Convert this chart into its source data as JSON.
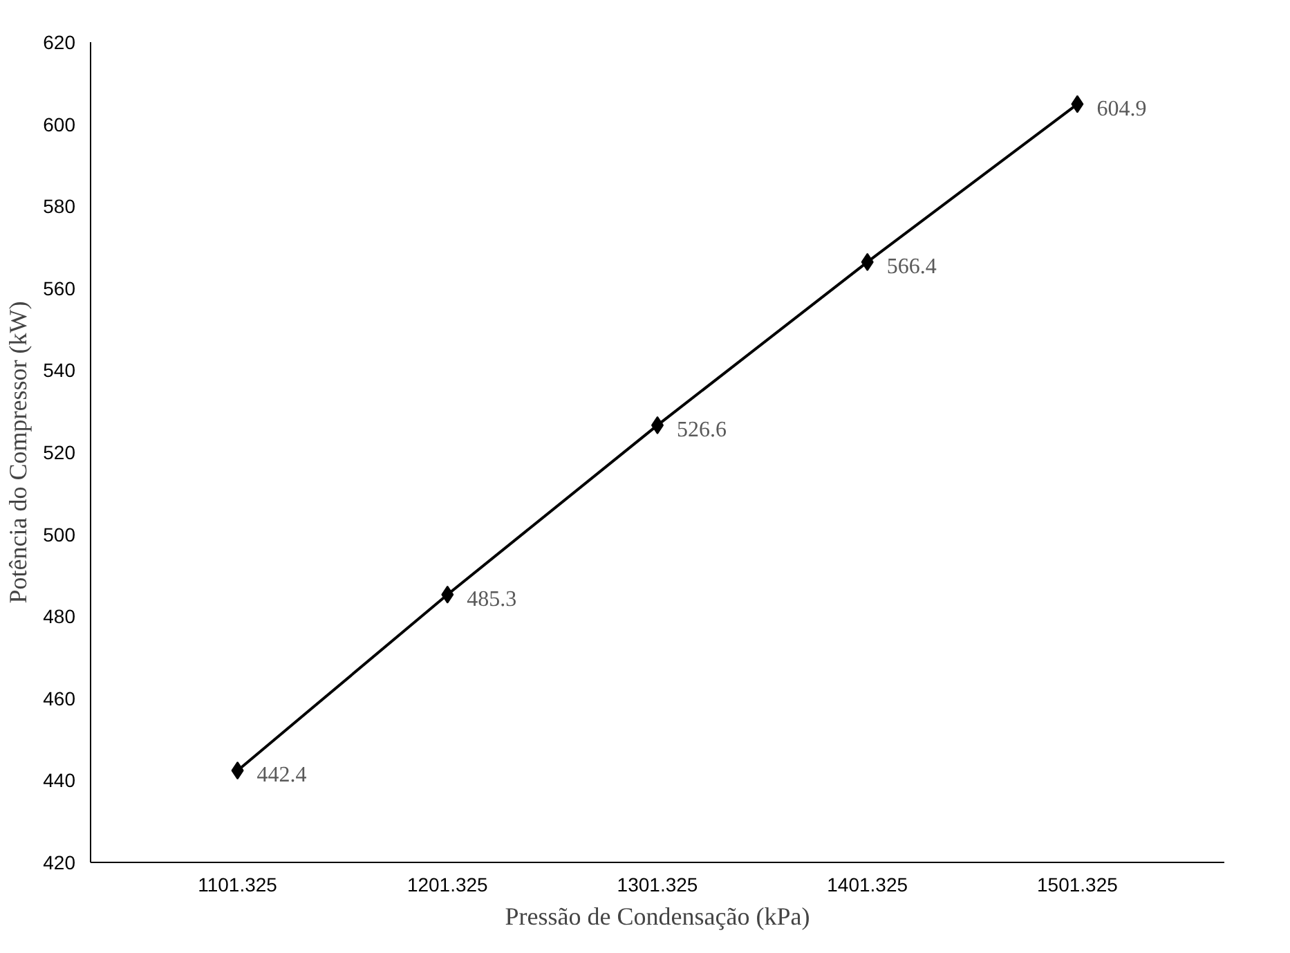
{
  "chart_data": {
    "type": "line",
    "xlabel": "Pressão de Condensação (kPa)",
    "ylabel": "Potência do Compressor (kW)",
    "categories": [
      "1101.325",
      "1201.325",
      "1301.325",
      "1401.325",
      "1501.325"
    ],
    "values": [
      442.4,
      485.3,
      526.6,
      566.4,
      604.9
    ],
    "color": "#000000",
    "marker": "diamond",
    "data_labels": true,
    "ylim": [
      420,
      620
    ],
    "yticks": [
      420,
      440,
      460,
      480,
      500,
      520,
      540,
      560,
      580,
      600,
      620
    ]
  }
}
